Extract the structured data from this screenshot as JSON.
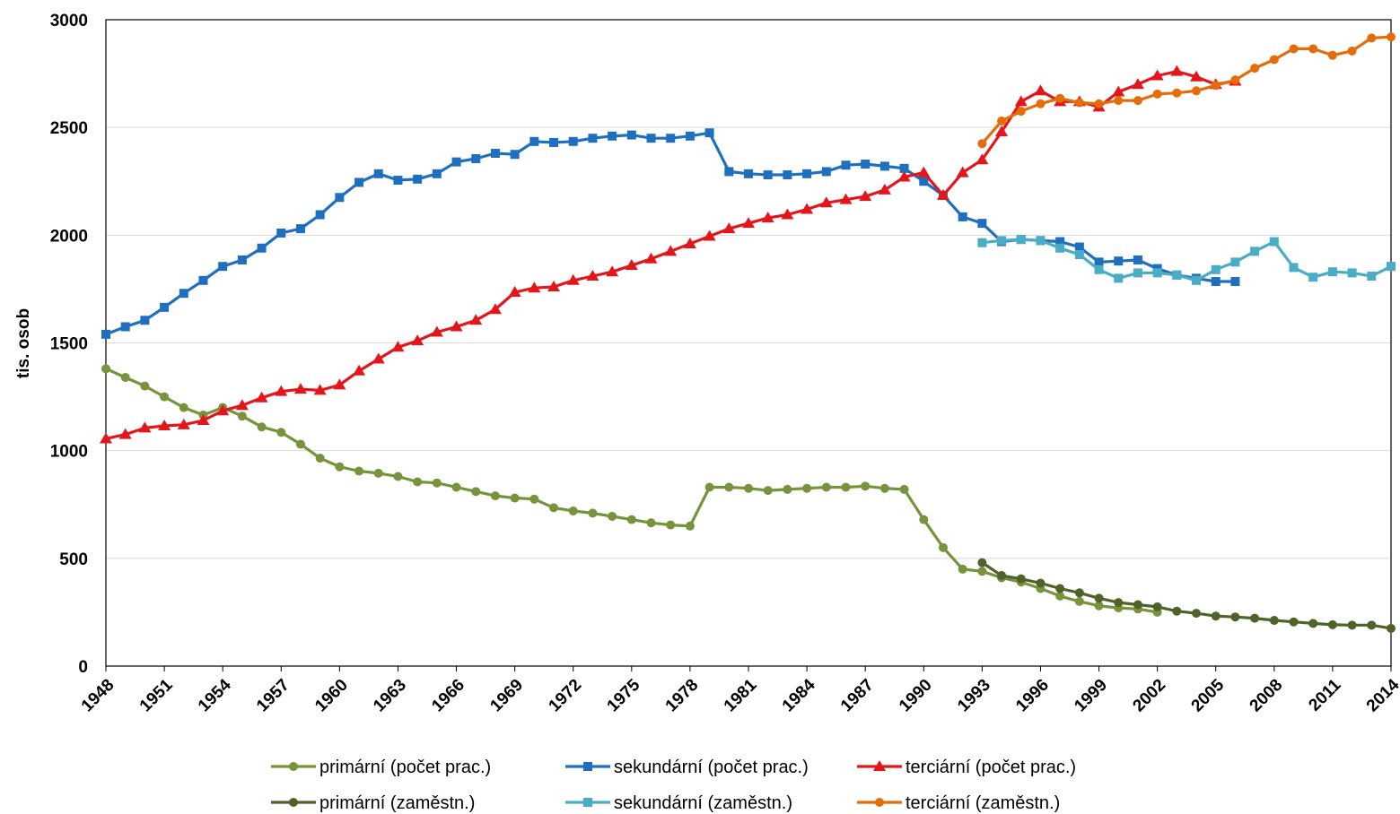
{
  "chart_data": {
    "type": "line",
    "title": "",
    "xlabel": "",
    "ylabel": "tis. osob",
    "xlim": [
      1948,
      2014
    ],
    "ylim": [
      0,
      3000
    ],
    "yticks": [
      0,
      500,
      1000,
      1500,
      2000,
      2500,
      3000
    ],
    "xticks": [
      1948,
      1951,
      1954,
      1957,
      1960,
      1963,
      1966,
      1969,
      1972,
      1975,
      1978,
      1981,
      1984,
      1987,
      1990,
      1993,
      1996,
      1999,
      2002,
      2005,
      2008,
      2011,
      2014
    ],
    "grid": "horizontal",
    "legend_position": "bottom",
    "series": [
      {
        "name": "primární (počet prac.)",
        "color": "#77933c",
        "marker": "circle",
        "x_start": 1948,
        "values": [
          1380,
          1340,
          1300,
          1250,
          1200,
          1165,
          1200,
          1160,
          1110,
          1085,
          1030,
          965,
          925,
          905,
          895,
          880,
          855,
          850,
          830,
          810,
          790,
          780,
          775,
          735,
          720,
          710,
          695,
          680,
          665,
          655,
          650,
          830,
          830,
          825,
          815,
          820,
          825,
          830,
          830,
          835,
          825,
          820,
          680,
          550,
          450,
          440,
          410,
          390,
          360,
          325,
          300,
          280,
          270,
          265,
          250
        ]
      },
      {
        "name": "sekundární (počet prac.)",
        "color": "#1f6fbf",
        "marker": "square",
        "x_start": 1948,
        "values": [
          1540,
          1575,
          1605,
          1665,
          1730,
          1790,
          1855,
          1885,
          1940,
          2010,
          2030,
          2095,
          2175,
          2245,
          2285,
          2255,
          2260,
          2285,
          2340,
          2355,
          2380,
          2375,
          2435,
          2430,
          2435,
          2450,
          2460,
          2465,
          2450,
          2450,
          2460,
          2475,
          2295,
          2285,
          2280,
          2280,
          2285,
          2295,
          2325,
          2330,
          2320,
          2310,
          2250,
          2185,
          2085,
          2055,
          1970,
          1980,
          1975,
          1970,
          1945,
          1875,
          1880,
          1885,
          1845,
          1815,
          1800,
          1785,
          1785
        ]
      },
      {
        "name": "terciární (počet prac.)",
        "color": "#e3171b",
        "marker": "triangle",
        "x_start": 1948,
        "values": [
          1055,
          1075,
          1105,
          1115,
          1120,
          1140,
          1185,
          1210,
          1245,
          1275,
          1285,
          1280,
          1305,
          1370,
          1425,
          1480,
          1510,
          1550,
          1575,
          1605,
          1655,
          1735,
          1755,
          1760,
          1790,
          1810,
          1830,
          1860,
          1890,
          1925,
          1960,
          1995,
          2030,
          2055,
          2080,
          2095,
          2120,
          2150,
          2165,
          2180,
          2210,
          2270,
          2290,
          2185,
          2290,
          2350,
          2480,
          2620,
          2670,
          2620,
          2620,
          2595,
          2665,
          2700,
          2740,
          2760,
          2735,
          2700,
          2715
        ]
      },
      {
        "name": "primární (zaměstn.)",
        "color": "#4f6228",
        "marker": "circle",
        "x_start": 1993,
        "values": [
          480,
          420,
          405,
          385,
          360,
          340,
          315,
          295,
          285,
          275,
          255,
          245,
          232,
          228,
          222,
          212,
          205,
          198,
          192,
          190,
          190,
          175
        ]
      },
      {
        "name": "sekundární (zaměstn.)",
        "color": "#4bacc6",
        "marker": "square",
        "x_start": 1993,
        "values": [
          1965,
          1975,
          1980,
          1975,
          1940,
          1910,
          1840,
          1800,
          1825,
          1825,
          1815,
          1790,
          1840,
          1875,
          1925,
          1970,
          1850,
          1805,
          1830,
          1825,
          1810,
          1855
        ]
      },
      {
        "name": "terciární (zaměstn.)",
        "color": "#e46c0a",
        "marker": "circle",
        "x_start": 1993,
        "values": [
          2425,
          2530,
          2575,
          2610,
          2635,
          2615,
          2610,
          2625,
          2625,
          2655,
          2660,
          2670,
          2695,
          2720,
          2775,
          2815,
          2865,
          2865,
          2835,
          2855,
          2915,
          2920
        ]
      }
    ]
  }
}
